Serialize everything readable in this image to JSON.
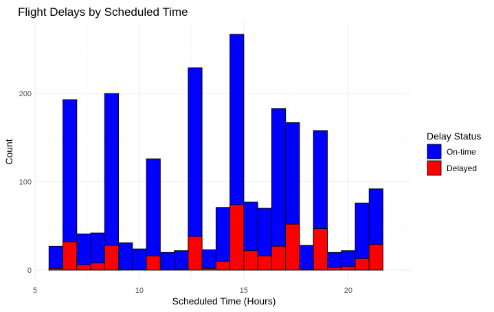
{
  "chart_data": {
    "type": "bar",
    "stacked": true,
    "title": "Flight Delays by Scheduled Time",
    "xlabel": "Scheduled Time (Hours)",
    "ylabel": "Count",
    "xlim": [
      5,
      23
    ],
    "ylim": [
      0,
      270
    ],
    "xticks": [
      5,
      10,
      15,
      20
    ],
    "yticks": [
      0,
      100,
      200
    ],
    "grid": true,
    "bin_width": 0.667,
    "x_centers": [
      6.0,
      6.667,
      7.333,
      8.0,
      8.667,
      9.333,
      10.0,
      10.667,
      11.333,
      12.0,
      12.667,
      13.333,
      14.0,
      14.667,
      15.333,
      16.0,
      16.667,
      17.333,
      18.0,
      18.667,
      19.333,
      20.0,
      20.667,
      21.333
    ],
    "series": [
      {
        "name": "On-time",
        "color": "#0000ff",
        "totals": [
          27,
          193,
          41,
          42,
          200,
          31,
          24,
          126,
          20,
          22,
          229,
          23,
          71,
          267,
          77,
          70,
          183,
          167,
          28,
          158,
          20,
          22,
          76,
          92
        ]
      },
      {
        "name": "Delayed",
        "color": "#ff0000",
        "values": [
          2,
          32,
          6,
          8,
          28,
          1,
          0,
          16,
          1,
          1,
          38,
          2,
          10,
          74,
          22,
          16,
          27,
          52,
          1,
          47,
          3,
          4,
          13,
          29
        ]
      }
    ],
    "legend": {
      "title": "Delay Status",
      "position": "right",
      "items": [
        {
          "label": "On-time",
          "color": "#0000ff"
        },
        {
          "label": "Delayed",
          "color": "#ff0000"
        }
      ]
    }
  }
}
